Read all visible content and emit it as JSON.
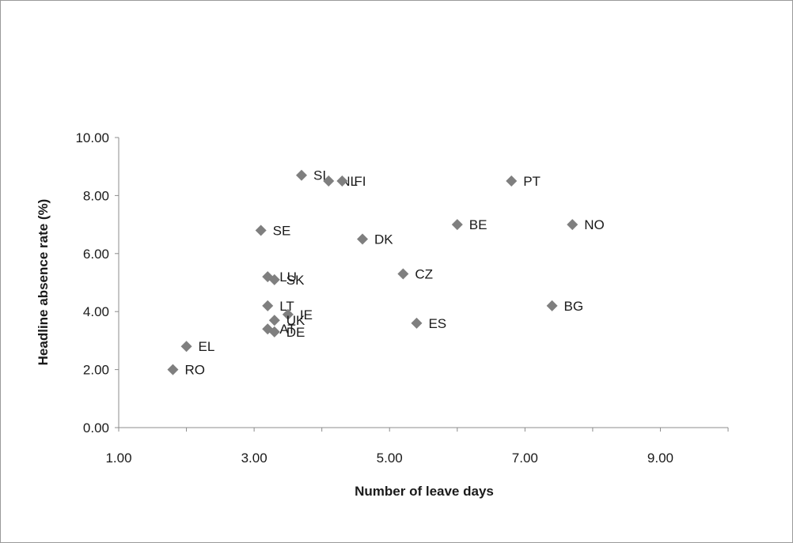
{
  "chart_data": {
    "type": "scatter",
    "title": "",
    "xlabel": "Number of leave days",
    "ylabel": "Headline absence rate (%)",
    "xlim": [
      1,
      10
    ],
    "ylim": [
      0,
      10
    ],
    "x_ticks": [
      "1.00",
      "3.00",
      "5.00",
      "7.00",
      "9.00"
    ],
    "y_ticks": [
      "0.00",
      "2.00",
      "4.00",
      "6.00",
      "8.00",
      "10.00"
    ],
    "grid": false,
    "legend": "none",
    "marker_color": "#7f7f7f",
    "points": [
      {
        "label": "SI",
        "x": 3.7,
        "y": 8.7
      },
      {
        "label": "NL",
        "x": 4.1,
        "y": 8.5
      },
      {
        "label": "FI",
        "x": 4.3,
        "y": 8.5
      },
      {
        "label": "PT",
        "x": 6.8,
        "y": 8.5
      },
      {
        "label": "SE",
        "x": 3.1,
        "y": 6.8
      },
      {
        "label": "DK",
        "x": 4.6,
        "y": 6.5
      },
      {
        "label": "BE",
        "x": 6.0,
        "y": 7.0
      },
      {
        "label": "NO",
        "x": 7.7,
        "y": 7.0
      },
      {
        "label": "LU",
        "x": 3.2,
        "y": 5.2
      },
      {
        "label": "SK",
        "x": 3.3,
        "y": 5.1
      },
      {
        "label": "CZ",
        "x": 5.2,
        "y": 5.3
      },
      {
        "label": "LT",
        "x": 3.2,
        "y": 4.2
      },
      {
        "label": "IE",
        "x": 3.5,
        "y": 3.9
      },
      {
        "label": "UK",
        "x": 3.3,
        "y": 3.7
      },
      {
        "label": "AT",
        "x": 3.2,
        "y": 3.4
      },
      {
        "label": "DE",
        "x": 3.3,
        "y": 3.3
      },
      {
        "label": "ES",
        "x": 5.4,
        "y": 3.6
      },
      {
        "label": "BG",
        "x": 7.4,
        "y": 4.2
      },
      {
        "label": "EL",
        "x": 2.0,
        "y": 2.8
      },
      {
        "label": "RO",
        "x": 1.8,
        "y": 2.0
      }
    ]
  }
}
